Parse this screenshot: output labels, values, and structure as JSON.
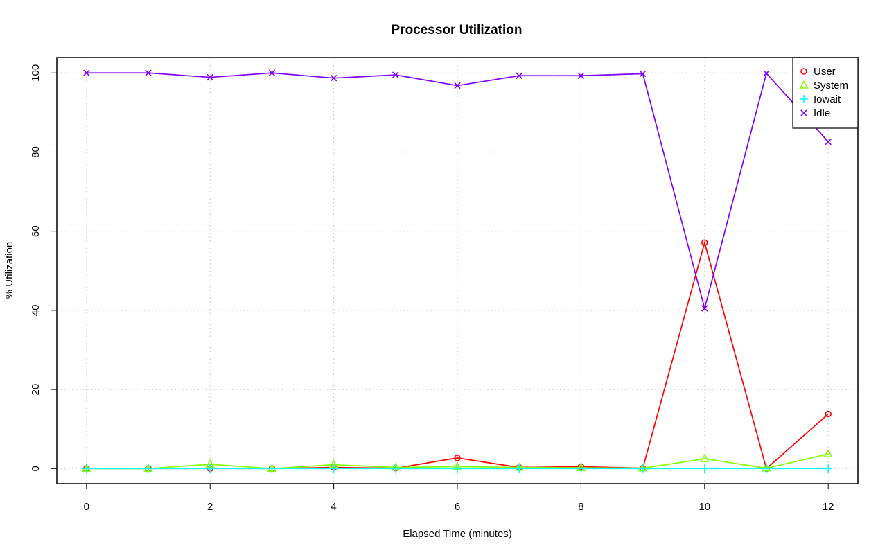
{
  "chart_data": {
    "type": "line",
    "title": "Processor Utilization",
    "xlabel": "Elapsed Time (minutes)",
    "ylabel": "% Utilization",
    "xlim": [
      -0.48,
      12.48
    ],
    "ylim": [
      -3.8,
      103.9
    ],
    "x_ticks": [
      0,
      2,
      4,
      6,
      8,
      10,
      12
    ],
    "y_ticks": [
      0,
      20,
      40,
      60,
      80,
      100
    ],
    "grid": true,
    "legend_position": "top-right",
    "x": [
      0,
      1,
      2,
      3,
      4,
      5,
      6,
      7,
      8,
      9,
      10,
      11,
      12
    ],
    "series": [
      {
        "name": "User",
        "color": "#ff0000",
        "marker": "circle",
        "values": [
          0,
          0,
          0,
          0,
          0.3,
          0.1,
          2.7,
          0.3,
          0.5,
          0.1,
          57.1,
          0,
          13.8
        ]
      },
      {
        "name": "System",
        "color": "#80ff00",
        "marker": "triangle",
        "values": [
          0,
          0,
          1.1,
          0,
          1.0,
          0.3,
          0.5,
          0.3,
          0.2,
          0.1,
          2.5,
          0.1,
          3.7
        ]
      },
      {
        "name": "Iowait",
        "color": "#00ffff",
        "marker": "plus",
        "values": [
          0,
          0,
          0,
          0,
          0,
          0,
          0,
          0,
          0,
          0,
          0,
          0,
          0
        ]
      },
      {
        "name": "Idle",
        "color": "#8000ff",
        "marker": "x",
        "values": [
          100,
          100,
          98.9,
          100,
          98.7,
          99.5,
          96.8,
          99.3,
          99.3,
          99.8,
          40.5,
          99.9,
          82.6
        ]
      }
    ]
  }
}
